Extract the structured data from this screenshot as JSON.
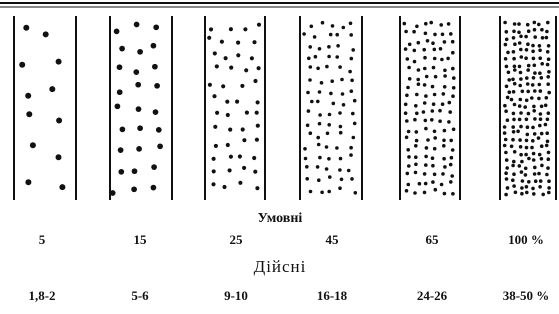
{
  "conventional": {
    "heading": "Умовні",
    "labels": [
      "5",
      "15",
      "25",
      "45",
      "65",
      "100 %"
    ]
  },
  "actual": {
    "heading": "Дійсні",
    "labels": [
      "1,8-2",
      "5-6",
      "9-10",
      "16-18",
      "24-26",
      "38-50 %"
    ]
  }
}
